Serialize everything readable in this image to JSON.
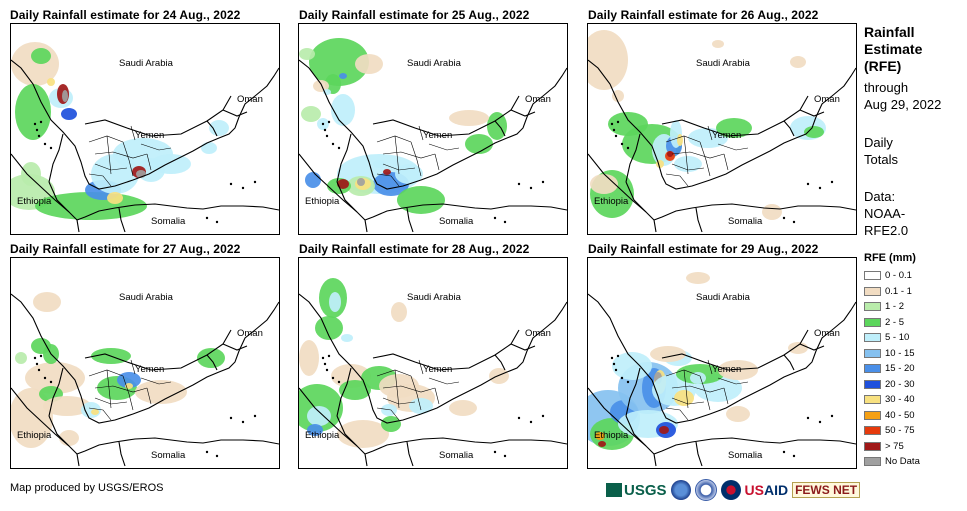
{
  "panels": [
    {
      "title": "Daily Rainfall estimate for 24 Aug., 2022"
    },
    {
      "title": "Daily Rainfall estimate for 25 Aug., 2022"
    },
    {
      "title": "Daily Rainfall estimate for 26 Aug., 2022"
    },
    {
      "title": "Daily Rainfall estimate for 27 Aug., 2022"
    },
    {
      "title": "Daily Rainfall estimate for 28 Aug., 2022"
    },
    {
      "title": "Daily Rainfall estimate for 29 Aug., 2022"
    }
  ],
  "map_labels": {
    "saudi": "Saudi Arabia",
    "oman": "Oman",
    "yemen": "Yemen",
    "ethiopia": "Ethiopia",
    "somalia": "Somalia"
  },
  "sidebar": {
    "title_lines": [
      "Rainfall",
      "Estimate",
      "(RFE)"
    ],
    "through": "through",
    "date": "Aug 29, 2022",
    "totals_lines": [
      "Daily",
      "Totals"
    ],
    "data_lines": [
      "Data:",
      "NOAA-",
      "RFE2.0"
    ]
  },
  "legend": {
    "title": "RFE (mm)",
    "items": [
      {
        "label": "0 - 0.1",
        "color": "#ffffff"
      },
      {
        "label": "0.1 - 1",
        "color": "#f1dcc2"
      },
      {
        "label": "1 - 2",
        "color": "#b9ecab"
      },
      {
        "label": "2 - 5",
        "color": "#5cd65c"
      },
      {
        "label": "5 - 10",
        "color": "#bfeffb"
      },
      {
        "label": "10 - 15",
        "color": "#85c1f0"
      },
      {
        "label": "15 - 20",
        "color": "#4a8fe8"
      },
      {
        "label": "20 - 30",
        "color": "#1e50dc"
      },
      {
        "label": "30 - 40",
        "color": "#f8e180"
      },
      {
        "label": "40 - 50",
        "color": "#f5a014"
      },
      {
        "label": "50 - 75",
        "color": "#e63a0c"
      },
      {
        "label": "> 75",
        "color": "#a01818"
      },
      {
        "label": "No Data",
        "color": "#a0a0a0"
      }
    ]
  },
  "credit": "Map produced by USGS/EROS",
  "logos": {
    "usgs": "USGS",
    "usaid_a": "US",
    "usaid_b": "AID",
    "fews": "FEWS NET"
  }
}
